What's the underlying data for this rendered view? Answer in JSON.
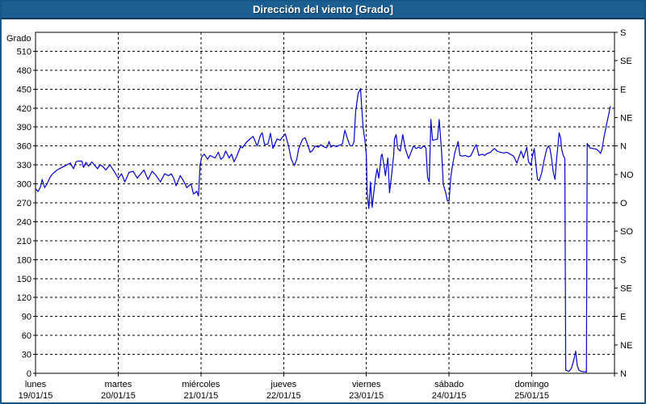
{
  "header": {
    "title": "Dirección del viento [Grado]"
  },
  "colors": {
    "title_bar": "#1B5E8F",
    "title_bar_edge": "#0B3B61",
    "frame": "#16578B",
    "line": "#0000CC",
    "grid": "#000000",
    "text": "#000000",
    "background": "#FFFFFF"
  },
  "chart_data": {
    "type": "line",
    "title": "Dirección del viento [Grado]",
    "ylabel_left": "Grado",
    "ylim": [
      0,
      540
    ],
    "grid": true,
    "y_left_ticks": [
      0,
      30,
      60,
      90,
      120,
      150,
      180,
      210,
      240,
      270,
      300,
      330,
      360,
      390,
      420,
      450,
      480,
      510
    ],
    "y_right_ticks": [
      {
        "value": 0,
        "label": "N"
      },
      {
        "value": 45,
        "label": "NE"
      },
      {
        "value": 90,
        "label": "E"
      },
      {
        "value": 135,
        "label": "SE"
      },
      {
        "value": 180,
        "label": "S"
      },
      {
        "value": 225,
        "label": "SO"
      },
      {
        "value": 270,
        "label": "O"
      },
      {
        "value": 315,
        "label": "NO"
      },
      {
        "value": 360,
        "label": "N"
      },
      {
        "value": 405,
        "label": "NE"
      },
      {
        "value": 450,
        "label": "E"
      },
      {
        "value": 495,
        "label": "SE"
      },
      {
        "value": 540,
        "label": "S"
      }
    ],
    "x_days": [
      {
        "name": "lunes",
        "date": "19/01/15"
      },
      {
        "name": "martes",
        "date": "20/01/15"
      },
      {
        "name": "miércoles",
        "date": "21/01/15"
      },
      {
        "name": "jueves",
        "date": "22/01/15"
      },
      {
        "name": "viernes",
        "date": "23/01/15"
      },
      {
        "name": "sábado",
        "date": "24/01/15"
      },
      {
        "name": "domingo",
        "date": "25/01/15"
      }
    ],
    "xlim_days": [
      0,
      7
    ],
    "series": [
      {
        "name": "Dirección del viento [Grado]",
        "points": [
          [
            0,
            292
          ],
          [
            0.03,
            288
          ],
          [
            0.06,
            295
          ],
          [
            0.08,
            307
          ],
          [
            0.11,
            294
          ],
          [
            0.14,
            300
          ],
          [
            0.17,
            309
          ],
          [
            0.2,
            315
          ],
          [
            0.26,
            322
          ],
          [
            0.32,
            326
          ],
          [
            0.38,
            330
          ],
          [
            0.42,
            333
          ],
          [
            0.46,
            324
          ],
          [
            0.49,
            335
          ],
          [
            0.52,
            336
          ],
          [
            0.56,
            336
          ],
          [
            0.58,
            326
          ],
          [
            0.61,
            334
          ],
          [
            0.64,
            328
          ],
          [
            0.68,
            335
          ],
          [
            0.71,
            330
          ],
          [
            0.75,
            324
          ],
          [
            0.78,
            330
          ],
          [
            0.81,
            328
          ],
          [
            0.85,
            322
          ],
          [
            0.9,
            330
          ],
          [
            0.95,
            320
          ],
          [
            1,
            309
          ],
          [
            1.04,
            316
          ],
          [
            1.08,
            303
          ],
          [
            1.13,
            318
          ],
          [
            1.18,
            320
          ],
          [
            1.23,
            309
          ],
          [
            1.31,
            322
          ],
          [
            1.36,
            307
          ],
          [
            1.41,
            320
          ],
          [
            1.46,
            313
          ],
          [
            1.51,
            303
          ],
          [
            1.56,
            316
          ],
          [
            1.61,
            313
          ],
          [
            1.64,
            316
          ],
          [
            1.67,
            309
          ],
          [
            1.7,
            297
          ],
          [
            1.75,
            313
          ],
          [
            1.78,
            307
          ],
          [
            1.83,
            294
          ],
          [
            1.88,
            300
          ],
          [
            1.91,
            284
          ],
          [
            1.95,
            288
          ],
          [
            1.97,
            281
          ],
          [
            1.99,
            330
          ],
          [
            2.01,
            343
          ],
          [
            2.04,
            347
          ],
          [
            2.08,
            339
          ],
          [
            2.11,
            345
          ],
          [
            2.14,
            343
          ],
          [
            2.17,
            341
          ],
          [
            2.21,
            350
          ],
          [
            2.24,
            339
          ],
          [
            2.27,
            342
          ],
          [
            2.3,
            352
          ],
          [
            2.34,
            341
          ],
          [
            2.37,
            347
          ],
          [
            2.4,
            335
          ],
          [
            2.43,
            343
          ],
          [
            2.48,
            359
          ],
          [
            2.5,
            357
          ],
          [
            2.55,
            366
          ],
          [
            2.6,
            372
          ],
          [
            2.63,
            375
          ],
          [
            2.68,
            360
          ],
          [
            2.72,
            377
          ],
          [
            2.74,
            381
          ],
          [
            2.77,
            362
          ],
          [
            2.81,
            363
          ],
          [
            2.84,
            380
          ],
          [
            2.87,
            356
          ],
          [
            2.92,
            371
          ],
          [
            2.96,
            369
          ],
          [
            2.99,
            375
          ],
          [
            3.02,
            379
          ],
          [
            3.06,
            360
          ],
          [
            3.09,
            340
          ],
          [
            3.12,
            331
          ],
          [
            3.13,
            329
          ],
          [
            3.16,
            340
          ],
          [
            3.18,
            355
          ],
          [
            3.21,
            365
          ],
          [
            3.23,
            371
          ],
          [
            3.26,
            373
          ],
          [
            3.29,
            362
          ],
          [
            3.32,
            350
          ],
          [
            3.35,
            353
          ],
          [
            3.38,
            360
          ],
          [
            3.42,
            358
          ],
          [
            3.45,
            362
          ],
          [
            3.48,
            359
          ],
          [
            3.52,
            357
          ],
          [
            3.55,
            367
          ],
          [
            3.57,
            358
          ],
          [
            3.6,
            361
          ],
          [
            3.64,
            359
          ],
          [
            3.67,
            361
          ],
          [
            3.71,
            363
          ],
          [
            3.74,
            385
          ],
          [
            3.77,
            372
          ],
          [
            3.8,
            361
          ],
          [
            3.83,
            360
          ],
          [
            3.85,
            367
          ],
          [
            3.87,
            414
          ],
          [
            3.9,
            443
          ],
          [
            3.93,
            451
          ],
          [
            3.94,
            428
          ],
          [
            3.96,
            390
          ],
          [
            3.98,
            371
          ],
          [
            4,
            345
          ],
          [
            4.01,
            286
          ],
          [
            4.02,
            271
          ],
          [
            4.03,
            261
          ],
          [
            4.05,
            303
          ],
          [
            4.07,
            263
          ],
          [
            4.09,
            286
          ],
          [
            4.11,
            309
          ],
          [
            4.13,
            324
          ],
          [
            4.15,
            309
          ],
          [
            4.18,
            345
          ],
          [
            4.19,
            347
          ],
          [
            4.22,
            324
          ],
          [
            4.23,
            313
          ],
          [
            4.26,
            341
          ],
          [
            4.28,
            286
          ],
          [
            4.31,
            320
          ],
          [
            4.33,
            345
          ],
          [
            4.34,
            371
          ],
          [
            4.36,
            378
          ],
          [
            4.38,
            356
          ],
          [
            4.41,
            352
          ],
          [
            4.44,
            378
          ],
          [
            4.47,
            356
          ],
          [
            4.51,
            340
          ],
          [
            4.54,
            350
          ],
          [
            4.57,
            360
          ],
          [
            4.6,
            356
          ],
          [
            4.63,
            358
          ],
          [
            4.66,
            356
          ],
          [
            4.69,
            360
          ],
          [
            4.72,
            357
          ],
          [
            4.74,
            310
          ],
          [
            4.76,
            303
          ],
          [
            4.78,
            402
          ],
          [
            4.8,
            369
          ],
          [
            4.83,
            370
          ],
          [
            4.86,
            371
          ],
          [
            4.88,
            402
          ],
          [
            4.91,
            350
          ],
          [
            4.93,
            299
          ],
          [
            4.96,
            286
          ],
          [
            4.98,
            273
          ],
          [
            5,
            273
          ],
          [
            5.02,
            310
          ],
          [
            5.04,
            328
          ],
          [
            5.07,
            350
          ],
          [
            5.11,
            367
          ],
          [
            5.13,
            345
          ],
          [
            5.16,
            344
          ],
          [
            5.2,
            345
          ],
          [
            5.23,
            343
          ],
          [
            5.26,
            344
          ],
          [
            5.29,
            352
          ],
          [
            5.31,
            358
          ],
          [
            5.33,
            362
          ],
          [
            5.36,
            345
          ],
          [
            5.4,
            347
          ],
          [
            5.43,
            345
          ],
          [
            5.46,
            348
          ],
          [
            5.5,
            350
          ],
          [
            5.53,
            354
          ],
          [
            5.55,
            356
          ],
          [
            5.58,
            352
          ],
          [
            5.62,
            350
          ],
          [
            5.66,
            349
          ],
          [
            5.7,
            350
          ],
          [
            5.74,
            347
          ],
          [
            5.78,
            344
          ],
          [
            5.82,
            333
          ],
          [
            5.87,
            352
          ],
          [
            5.9,
            341
          ],
          [
            5.94,
            358
          ],
          [
            5.96,
            335
          ],
          [
            5.99,
            330
          ],
          [
            6.01,
            345
          ],
          [
            6.03,
            356
          ],
          [
            6.05,
            330
          ],
          [
            6.07,
            307
          ],
          [
            6.09,
            305
          ],
          [
            6.12,
            318
          ],
          [
            6.15,
            338
          ],
          [
            6.18,
            355
          ],
          [
            6.2,
            360
          ],
          [
            6.22,
            356
          ],
          [
            6.24,
            339
          ],
          [
            6.26,
            318
          ],
          [
            6.28,
            307
          ],
          [
            6.3,
            340
          ],
          [
            6.32,
            365
          ],
          [
            6.33,
            381
          ],
          [
            6.35,
            372
          ],
          [
            6.36,
            356
          ],
          [
            6.38,
            345
          ],
          [
            6.4,
            340
          ],
          [
            6.41,
            5
          ],
          [
            6.45,
            3
          ],
          [
            6.48,
            8
          ],
          [
            6.51,
            22
          ],
          [
            6.53,
            35
          ],
          [
            6.55,
            12
          ],
          [
            6.57,
            5
          ],
          [
            6.6,
            3
          ],
          [
            6.66,
            2
          ],
          [
            6.67,
            364
          ],
          [
            6.7,
            357
          ],
          [
            6.74,
            356
          ],
          [
            6.78,
            355
          ],
          [
            6.81,
            352
          ],
          [
            6.83,
            348
          ],
          [
            6.85,
            355
          ],
          [
            6.87,
            372
          ],
          [
            6.89,
            385
          ],
          [
            6.91,
            398
          ],
          [
            6.93,
            410
          ],
          [
            6.95,
            423
          ]
        ]
      }
    ]
  }
}
